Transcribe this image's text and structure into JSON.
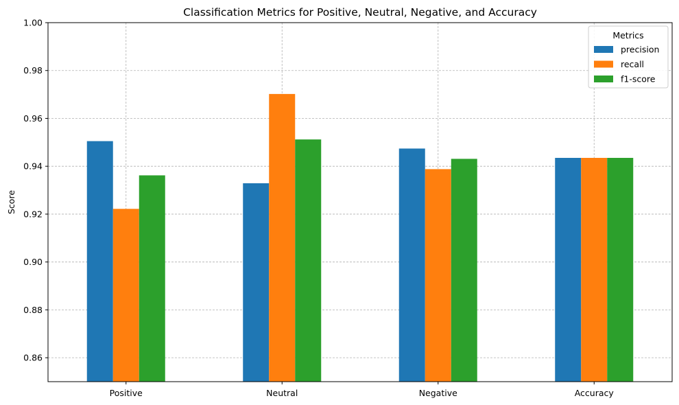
{
  "chart_data": {
    "type": "bar",
    "title": "Classification Metrics for Positive, Neutral, Negative, and Accuracy",
    "xlabel": "",
    "ylabel": "Score",
    "categories": [
      "Positive",
      "Neutral",
      "Negative",
      "Accuracy"
    ],
    "series": [
      {
        "name": "precision",
        "color": "#1f77b4",
        "values": [
          0.9505,
          0.9329,
          0.9474,
          0.9435
        ]
      },
      {
        "name": "recall",
        "color": "#ff7f0e",
        "values": [
          0.9222,
          0.9702,
          0.9388,
          0.9435
        ]
      },
      {
        "name": "f1-score",
        "color": "#2ca02c",
        "values": [
          0.9362,
          0.9512,
          0.9431,
          0.9435
        ]
      }
    ],
    "ylim": [
      0.85,
      1.0
    ],
    "yticks": [
      "0.86",
      "0.88",
      "0.90",
      "0.92",
      "0.94",
      "0.96",
      "0.98",
      "1.00"
    ],
    "grid": true,
    "legend": {
      "title": "Metrics",
      "position": "top-right"
    }
  }
}
